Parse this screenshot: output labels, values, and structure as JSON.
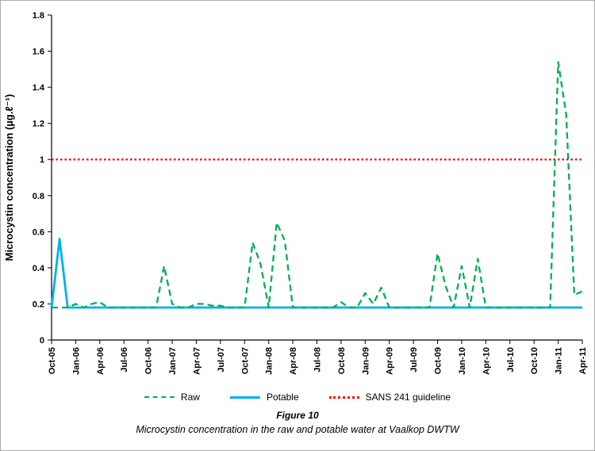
{
  "figure": {
    "caption_title": "Figure 10",
    "caption_text": "Microcystin concentration in the raw and potable water at Vaalkop DWTW"
  },
  "chart_data": {
    "type": "line",
    "title": "",
    "xlabel": "",
    "ylabel": "Microcystin concentration (µg.ℓ⁻¹)",
    "ylim": [
      0,
      1.8
    ],
    "ytick_step": 0.2,
    "grid": false,
    "legend_position": "bottom",
    "x_tick_labels": [
      "Oct-05",
      "Jan-06",
      "Apr-06",
      "Jul-06",
      "Oct-06",
      "Jan-07",
      "Apr-07",
      "Jul-07",
      "Oct-07",
      "Jan-08",
      "Apr-08",
      "Jul-08",
      "Oct-08",
      "Jan-09",
      "Apr-09",
      "Jul-09",
      "Oct-09",
      "Jan-10",
      "Apr-10",
      "Jul-10",
      "Oct-10",
      "Jan-11",
      "Apr-11"
    ],
    "x_months": [
      "Oct-05",
      "Nov-05",
      "Dec-05",
      "Jan-06",
      "Feb-06",
      "Mar-06",
      "Apr-06",
      "May-06",
      "Jun-06",
      "Jul-06",
      "Aug-06",
      "Sep-06",
      "Oct-06",
      "Nov-06",
      "Dec-06",
      "Jan-07",
      "Feb-07",
      "Mar-07",
      "Apr-07",
      "May-07",
      "Jun-07",
      "Jul-07",
      "Aug-07",
      "Sep-07",
      "Oct-07",
      "Nov-07",
      "Dec-07",
      "Jan-08",
      "Feb-08",
      "Mar-08",
      "Apr-08",
      "May-08",
      "Jun-08",
      "Jul-08",
      "Aug-08",
      "Sep-08",
      "Oct-08",
      "Nov-08",
      "Dec-08",
      "Jan-09",
      "Feb-09",
      "Mar-09",
      "Apr-09",
      "May-09",
      "Jun-09",
      "Jul-09",
      "Aug-09",
      "Sep-09",
      "Oct-09",
      "Nov-09",
      "Dec-09",
      "Jan-10",
      "Feb-10",
      "Mar-10",
      "Apr-10",
      "May-10",
      "Jun-10",
      "Jul-10",
      "Aug-10",
      "Sep-10",
      "Oct-10",
      "Nov-10",
      "Dec-10",
      "Jan-11",
      "Feb-11",
      "Mar-11",
      "Apr-11"
    ],
    "series": [
      {
        "name": "Raw",
        "color": "#00B050",
        "line_style": "dashed",
        "values": [
          0.18,
          0.18,
          0.18,
          0.2,
          0.18,
          0.2,
          0.21,
          0.18,
          0.18,
          0.18,
          0.18,
          0.18,
          0.18,
          0.18,
          0.41,
          0.2,
          0.18,
          0.18,
          0.2,
          0.2,
          0.19,
          0.19,
          0.18,
          0.18,
          0.18,
          0.54,
          0.42,
          0.18,
          0.65,
          0.55,
          0.18,
          0.18,
          0.18,
          0.18,
          0.18,
          0.18,
          0.21,
          0.18,
          0.18,
          0.26,
          0.2,
          0.29,
          0.18,
          0.18,
          0.18,
          0.18,
          0.18,
          0.18,
          0.48,
          0.3,
          0.18,
          0.41,
          0.18,
          0.45,
          0.18,
          0.18,
          0.18,
          0.18,
          0.18,
          0.18,
          0.18,
          0.18,
          0.18,
          1.54,
          1.25,
          0.25,
          0.27
        ]
      },
      {
        "name": "Potable",
        "color": "#00B0F0",
        "line_style": "solid",
        "values": [
          0.18,
          0.56,
          0.18,
          0.18,
          0.18,
          0.18,
          0.18,
          0.18,
          0.18,
          0.18,
          0.18,
          0.18,
          0.18,
          0.18,
          0.18,
          0.18,
          0.18,
          0.18,
          0.18,
          0.18,
          0.18,
          0.18,
          0.18,
          0.18,
          0.18,
          0.18,
          0.18,
          0.18,
          0.18,
          0.18,
          0.18,
          0.18,
          0.18,
          0.18,
          0.18,
          0.18,
          0.18,
          0.18,
          0.18,
          0.18,
          0.18,
          0.18,
          0.18,
          0.18,
          0.18,
          0.18,
          0.18,
          0.18,
          0.18,
          0.18,
          0.18,
          0.18,
          0.18,
          0.18,
          0.18,
          0.18,
          0.18,
          0.18,
          0.18,
          0.18,
          0.18,
          0.18,
          0.18,
          0.18,
          0.18,
          0.18,
          0.18
        ]
      },
      {
        "name": "SANS 241 guideline",
        "color": "#FF0000",
        "line_style": "dotted",
        "constant": 1.0
      }
    ]
  }
}
